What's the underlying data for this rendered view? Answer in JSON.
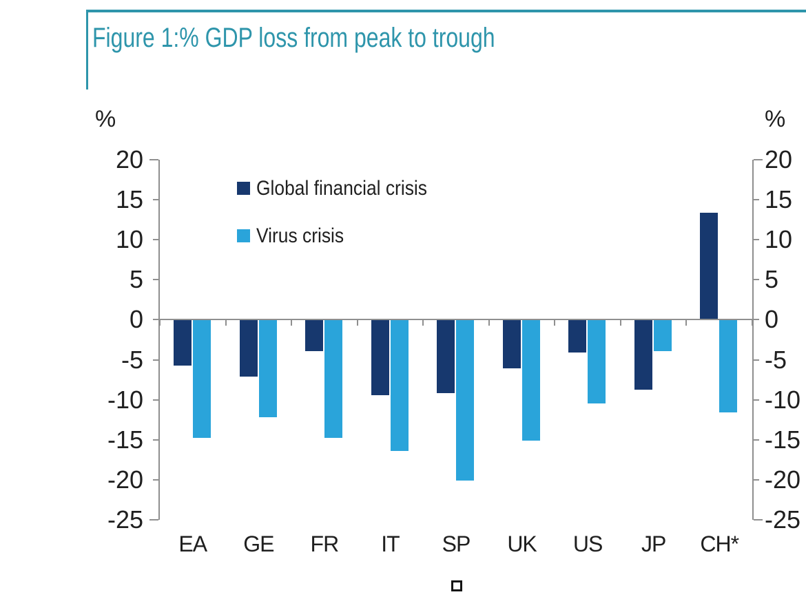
{
  "figure": {
    "title": "Figure 1:% GDP loss from peak to trough",
    "title_color": "#2e95ab",
    "border_color": "#2e95ab"
  },
  "chart_data": {
    "type": "bar",
    "title": "Figure 1:% GDP loss from peak to trough",
    "categories": [
      "EA",
      "GE",
      "FR",
      "IT",
      "SP",
      "UK",
      "US",
      "JP",
      "CH*"
    ],
    "series": [
      {
        "name": "Global financial crisis",
        "color": "#17386e",
        "values": [
          -5.7,
          -7.1,
          -3.9,
          -9.4,
          -9.2,
          -6.1,
          -4.1,
          -8.7,
          13.4
        ]
      },
      {
        "name": "Virus crisis",
        "color": "#2aa4da",
        "values": [
          -14.8,
          -12.2,
          -14.8,
          -16.4,
          -20.1,
          -15.1,
          -10.5,
          -3.9,
          -11.6
        ]
      }
    ],
    "ylabel_left": "%",
    "ylabel_right": "%",
    "ylim": [
      -25,
      20
    ],
    "yticks": [
      20,
      15,
      10,
      5,
      0,
      -5,
      -10,
      -15,
      -20,
      -25
    ],
    "grid": false,
    "legend_position": "upper-left-inside",
    "axis_color": "#8f8f8f",
    "text_color": "#1f1f1f",
    "zero_line": true
  },
  "footer": {
    "symbol": "hollow-square"
  }
}
